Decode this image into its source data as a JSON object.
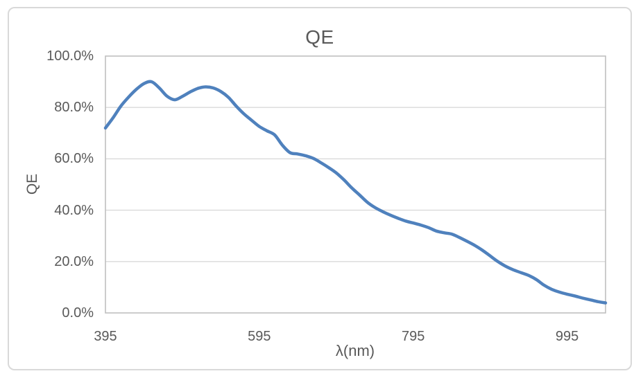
{
  "chart_data": {
    "type": "line",
    "title": "QE",
    "xlabel": "λ(nm)",
    "ylabel": "QE",
    "legend": "none",
    "grid": "horizontal",
    "smooth": true,
    "xlim": [
      395,
      1045
    ],
    "ylim_percent": [
      0,
      100
    ],
    "x_tick_values": [
      395,
      595,
      795,
      995
    ],
    "x_tick_labels": [
      "395",
      "595",
      "795",
      "995"
    ],
    "y_tick_values": [
      0,
      20,
      40,
      60,
      80,
      100
    ],
    "y_tick_labels": [
      "0.0%",
      "20.0%",
      "40.0%",
      "60.0%",
      "80.0%",
      "100.0%"
    ],
    "series": [
      {
        "name": "QE",
        "x": [
          395,
          405,
          415,
          425,
          435,
          445,
          455,
          465,
          475,
          485,
          495,
          505,
          515,
          525,
          535,
          545,
          555,
          565,
          575,
          585,
          595,
          605,
          615,
          625,
          635,
          645,
          655,
          665,
          675,
          685,
          695,
          705,
          715,
          725,
          735,
          745,
          755,
          765,
          775,
          785,
          795,
          805,
          815,
          825,
          835,
          845,
          855,
          865,
          875,
          885,
          895,
          905,
          915,
          925,
          935,
          945,
          955,
          965,
          975,
          985,
          995,
          1005,
          1015,
          1025,
          1035,
          1045
        ],
        "y_percent": [
          72.0,
          76.0,
          80.5,
          84.0,
          87.0,
          89.3,
          90.0,
          87.6,
          84.4,
          83.0,
          84.3,
          86.0,
          87.4,
          88.0,
          87.6,
          86.2,
          83.9,
          80.5,
          77.5,
          75.0,
          72.6,
          70.9,
          69.3,
          65.3,
          62.4,
          61.9,
          61.2,
          60.2,
          58.5,
          56.6,
          54.5,
          51.8,
          48.7,
          46.0,
          43.2,
          41.1,
          39.5,
          38.1,
          36.9,
          35.8,
          35.0,
          34.2,
          33.2,
          31.9,
          31.2,
          30.7,
          29.4,
          27.9,
          26.3,
          24.4,
          22.2,
          20.0,
          18.2,
          16.8,
          15.7,
          14.6,
          13.0,
          10.8,
          9.2,
          8.1,
          7.3,
          6.6,
          5.8,
          5.1,
          4.4,
          3.9
        ]
      }
    ],
    "colors": {
      "line": "#4F81BD",
      "gridline": "#D9D9D9",
      "plot_border": "#BFBFBF",
      "text": "#595959",
      "card_border": "#D9D9D9",
      "background": "#FFFFFF"
    }
  }
}
